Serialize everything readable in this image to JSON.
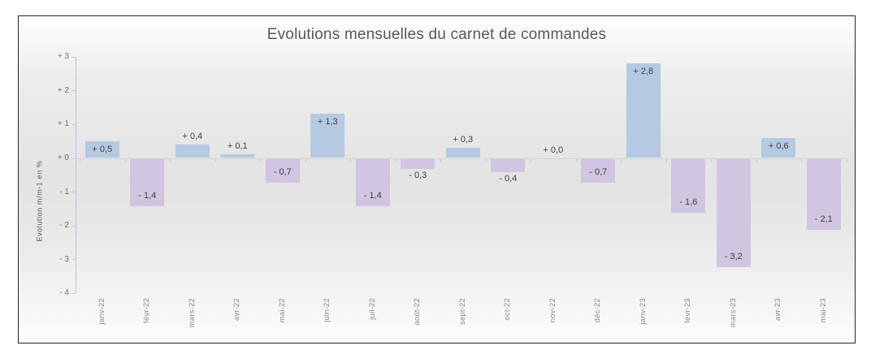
{
  "chart_data": {
    "type": "bar",
    "title": "Evolutions mensuelles du carnet de commandes",
    "ylabel": "Evolution m/m-1 en %",
    "xlabel": "",
    "categories": [
      "janv-22",
      "févr-22",
      "mars-22",
      "avr-22",
      "mai-22",
      "juin-22",
      "juil-22",
      "août-22",
      "sept-22",
      "oct-22",
      "nov-22",
      "déc-22",
      "janv-23",
      "févr-23",
      "mars-23",
      "avr-23",
      "mai-23"
    ],
    "values": [
      0.5,
      -1.4,
      0.4,
      0.1,
      -0.7,
      1.3,
      -1.4,
      -0.3,
      0.3,
      -0.4,
      0.0,
      -0.7,
      2.8,
      -1.6,
      -3.2,
      0.6,
      -2.1
    ],
    "data_labels": [
      "+ 0,5",
      "- 1,4",
      "+ 0,4",
      "+ 0,1",
      "- 0,7",
      "+ 1,3",
      "- 1,4",
      "- 0,3",
      "+ 0,3",
      "- 0,4",
      "+ 0,0",
      "- 0,7",
      "+ 2,8",
      "- 1,6",
      "- 3,2",
      "+ 0,6",
      "- 2,1"
    ],
    "ylim": [
      -4,
      3
    ],
    "yticks": [
      3,
      2,
      1,
      0,
      -1,
      -2,
      -3,
      -4
    ],
    "ytick_labels": [
      "+ 3",
      "+ 2",
      "+ 1",
      "+ 0",
      "- 1",
      "- 2",
      "- 3",
      "- 4"
    ],
    "grid": false,
    "legend": null,
    "colors": {
      "positive_bar": "#b5c9e3",
      "negative_bar": "#d0c6e1",
      "title_text": "#595959",
      "value_label_text": "#3f3f3f",
      "axis_line": "#b7c5d9",
      "zero_line": "#d2d2d2"
    }
  }
}
